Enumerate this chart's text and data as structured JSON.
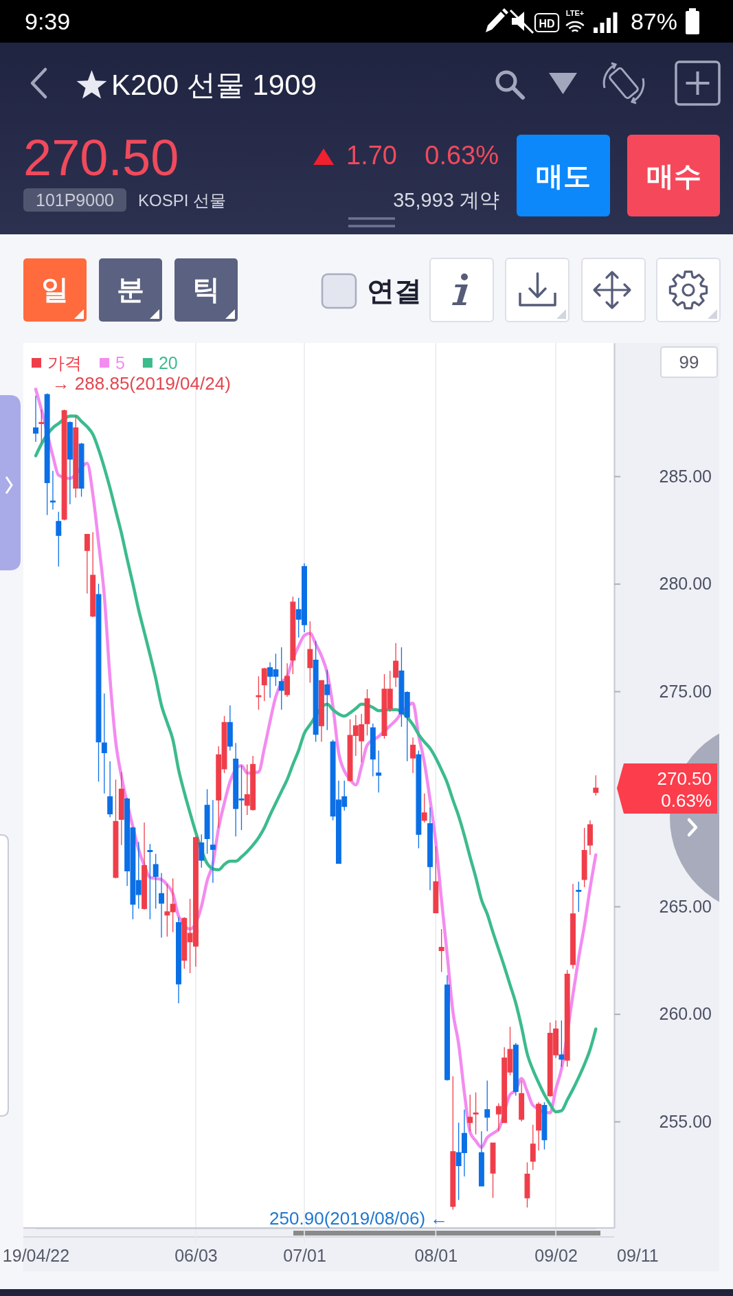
{
  "chart_data": {
    "type": "candlestick",
    "title": "K200 선물 1909",
    "categories": [
      "19/04/22",
      null,
      null,
      null,
      null,
      null,
      null,
      null,
      null,
      null,
      null,
      null,
      null,
      null,
      null,
      null,
      null,
      null,
      null,
      null,
      null,
      null,
      null,
      null,
      null,
      null,
      null,
      null,
      "06/03",
      null,
      null,
      null,
      null,
      null,
      null,
      null,
      null,
      null,
      null,
      null,
      null,
      null,
      null,
      null,
      null,
      null,
      null,
      "07/01",
      null,
      null,
      null,
      null,
      null,
      null,
      null,
      null,
      null,
      null,
      null,
      null,
      null,
      null,
      null,
      null,
      null,
      null,
      null,
      null,
      null,
      null,
      "08/01",
      null,
      null,
      null,
      null,
      null,
      null,
      null,
      null,
      null,
      null,
      null,
      null,
      null,
      null,
      null,
      null,
      null,
      null,
      null,
      null,
      "09/02",
      null,
      null,
      null,
      null,
      null,
      null,
      null
    ],
    "series": [
      {
        "name": "가격",
        "color": "#ef3e4a",
        "colors": [
          "#0b6fe6",
          "#ef3e4a",
          "#0b6fe6",
          "#0b6fe6",
          "#0b6fe6",
          "#ef3e4a",
          "#0b6fe6",
          "#ef3e4a",
          "#0b6fe6",
          "#ef3e4a",
          "#ef3e4a",
          "#0b6fe6",
          "#0b6fe6",
          "#0b6fe6",
          "#ef3e4a",
          "#ef3e4a",
          "#0b6fe6",
          "#0b6fe6",
          "#0b6fe6",
          "#ef3e4a",
          "#0b6fe6",
          "#0b6fe6",
          "#0b6fe6",
          "#ef3e4a",
          "#ef3e4a",
          "#0b6fe6",
          "#ef3e4a",
          "#ef3e4a",
          "#ef3e4a",
          "#0b6fe6",
          "#0b6fe6",
          "#0b6fe6",
          "#ef3e4a",
          "#ef3e4a",
          "#0b6fe6",
          "#0b6fe6",
          "#0b6fe6",
          "#ef3e4a",
          "#ef3e4a",
          "#ef3e4a",
          "#ef3e4a",
          "#0b6fe6",
          "#0b6fe6",
          "#0b6fe6",
          "#ef3e4a",
          "#ef3e4a",
          "#0b6fe6",
          "#0b6fe6",
          "#ef3e4a",
          "#0b6fe6",
          "#ef3e4a",
          "#0b6fe6",
          "#0b6fe6",
          "#0b6fe6",
          "#0b6fe6",
          "#ef3e4a",
          "#ef3e4a",
          "#ef3e4a",
          "#ef3e4a",
          "#0b6fe6",
          "#0b6fe6",
          "#ef3e4a",
          "#ef3e4a",
          "#ef3e4a",
          "#0b6fe6",
          "#0b6fe6",
          "#ef3e4a",
          "#0b6fe6",
          "#ef3e4a",
          "#0b6fe6",
          "#ef3e4a",
          "#ef3e4a",
          "#0b6fe6",
          "#ef3e4a",
          "#0b6fe6",
          "#0b6fe6",
          "#ef3e4a",
          "#ef3e4a",
          "#0b6fe6",
          "#0b6fe6",
          "#ef3e4a",
          "#ef3e4a",
          "#ef3e4a",
          "#ef3e4a",
          "#0b6fe6",
          "#ef3e4a",
          "#ef3e4a",
          "#ef3e4a",
          "#ef3e4a",
          "#0b6fe6",
          "#ef3e4a",
          "#ef3e4a",
          "#0b6fe6",
          "#ef3e4a",
          "#ef3e4a",
          "#0b6fe6",
          "#ef3e4a",
          "#ef3e4a",
          "#ef3e4a"
        ],
        "ohlc": [
          [
            287.25,
            288.75,
            286.6,
            287.0
          ],
          [
            287.45,
            288.1,
            286.55,
            287.5
          ],
          [
            288.8,
            288.85,
            283.2,
            284.7
          ],
          [
            283.85,
            285.25,
            283.45,
            283.8
          ],
          [
            282.9,
            283.35,
            280.8,
            282.25
          ],
          [
            283.0,
            288.1,
            282.95,
            288.05
          ],
          [
            287.5,
            287.55,
            283.7,
            285.8
          ],
          [
            284.45,
            287.8,
            284.0,
            287.25
          ],
          [
            286.5,
            286.55,
            284.05,
            284.45
          ],
          [
            281.55,
            282.3,
            279.55,
            282.3
          ],
          [
            278.5,
            282.4,
            278.45,
            280.4
          ],
          [
            279.5,
            280.0,
            270.8,
            272.65
          ],
          [
            272.6,
            274.9,
            270.25,
            272.15
          ],
          [
            270.1,
            271.75,
            269.15,
            269.3
          ],
          [
            266.35,
            270.9,
            266.3,
            268.95
          ],
          [
            269.05,
            271.25,
            267.85,
            270.45
          ],
          [
            270.0,
            270.05,
            265.95,
            266.65
          ],
          [
            268.65,
            268.7,
            264.4,
            265.1
          ],
          [
            266.2,
            268.0,
            264.9,
            265.55
          ],
          [
            264.9,
            268.9,
            264.85,
            266.9
          ],
          [
            267.6,
            267.9,
            264.4,
            267.55
          ],
          [
            266.95,
            267.45,
            264.9,
            266.4
          ],
          [
            265.6,
            266.55,
            263.55,
            265.15
          ],
          [
            264.6,
            266.05,
            263.6,
            264.75
          ],
          [
            264.75,
            266.3,
            263.8,
            265.1
          ],
          [
            264.25,
            264.5,
            260.5,
            261.4
          ],
          [
            262.5,
            264.5,
            262.1,
            264.45
          ],
          [
            263.35,
            265.35,
            261.9,
            263.75
          ],
          [
            263.15,
            268.25,
            262.2,
            268.2
          ],
          [
            267.95,
            268.35,
            266.8,
            267.15
          ],
          [
            269.7,
            270.45,
            267.45,
            268.15
          ],
          [
            267.85,
            269.95,
            266.1,
            267.65
          ],
          [
            269.95,
            272.45,
            268.65,
            272.05
          ],
          [
            271.4,
            273.85,
            271.2,
            273.55
          ],
          [
            273.55,
            274.35,
            272.25,
            272.45
          ],
          [
            271.85,
            272.6,
            268.25,
            269.55
          ],
          [
            270.0,
            271.55,
            268.55,
            269.95
          ],
          [
            269.7,
            271.6,
            269.25,
            270.2
          ],
          [
            269.5,
            272.0,
            269.45,
            271.6
          ],
          [
            274.75,
            275.7,
            274.15,
            274.8
          ],
          [
            275.3,
            276.1,
            274.55,
            276.05
          ],
          [
            276.1,
            276.35,
            274.7,
            275.7
          ],
          [
            276.0,
            276.75,
            275.25,
            275.7
          ],
          [
            275.45,
            277.05,
            274.15,
            275.05
          ],
          [
            274.85,
            276.3,
            274.75,
            275.7
          ],
          [
            276.45,
            279.4,
            275.8,
            279.15
          ],
          [
            278.8,
            279.35,
            277.5,
            278.35
          ],
          [
            280.8,
            280.95,
            277.75,
            278.1
          ],
          [
            276.1,
            278.25,
            275.4,
            276.95
          ],
          [
            276.45,
            277.35,
            272.65,
            273.0
          ],
          [
            273.4,
            275.5,
            272.65,
            275.5
          ],
          [
            275.3,
            276.0,
            273.2,
            274.85
          ],
          [
            272.65,
            272.75,
            269.0,
            269.2
          ],
          [
            269.95,
            270.85,
            267.0,
            267.0
          ],
          [
            270.1,
            270.85,
            269.45,
            269.65
          ],
          [
            270.85,
            273.7,
            270.8,
            272.95
          ],
          [
            272.95,
            273.9,
            272.0,
            273.4
          ],
          [
            272.7,
            273.95,
            271.7,
            273.45
          ],
          [
            273.5,
            275.1,
            272.95,
            274.65
          ],
          [
            273.3,
            273.5,
            271.05,
            271.85
          ],
          [
            271.2,
            272.25,
            270.3,
            271.1
          ],
          [
            272.95,
            275.8,
            272.8,
            275.1
          ],
          [
            274.2,
            275.95,
            274.05,
            275.1
          ],
          [
            275.65,
            277.25,
            275.2,
            276.4
          ],
          [
            275.95,
            277.05,
            273.35,
            273.95
          ],
          [
            274.95,
            275.0,
            271.75,
            273.8
          ],
          [
            271.9,
            272.85,
            271.2,
            272.5
          ],
          [
            272.05,
            272.25,
            267.7,
            268.35
          ],
          [
            269.0,
            270.25,
            268.9,
            269.35
          ],
          [
            268.85,
            269.6,
            265.75,
            266.85
          ],
          [
            264.7,
            267.8,
            264.7,
            266.15
          ],
          [
            262.95,
            263.95,
            261.95,
            263.1
          ],
          [
            261.35,
            261.8,
            256.9,
            256.95
          ],
          [
            251.05,
            257.1,
            250.9,
            253.6
          ],
          [
            253.55,
            254.95,
            251.35,
            252.95
          ],
          [
            254.45,
            255.55,
            252.45,
            253.55
          ],
          [
            254.95,
            256.25,
            254.55,
            255.2
          ],
          [
            255.35,
            256.35,
            254.4,
            255.4
          ],
          [
            253.55,
            254.55,
            252.0,
            252.0
          ],
          [
            255.55,
            256.9,
            254.55,
            255.2
          ],
          [
            252.6,
            254.0,
            251.45,
            254.0
          ],
          [
            255.35,
            255.85,
            254.55,
            255.7
          ],
          [
            254.95,
            258.45,
            254.95,
            257.95
          ],
          [
            257.3,
            259.4,
            257.15,
            258.35
          ],
          [
            258.55,
            258.65,
            256.2,
            256.4
          ],
          [
            255.1,
            256.9,
            255.0,
            256.3
          ],
          [
            251.45,
            253.1,
            251.0,
            252.55
          ],
          [
            253.15,
            254.85,
            252.75,
            253.95
          ],
          [
            254.6,
            255.9,
            253.65,
            255.8
          ],
          [
            255.75,
            255.9,
            253.7,
            254.15
          ],
          [
            256.2,
            259.6,
            256.15,
            259.1
          ],
          [
            258.1,
            259.7,
            257.95,
            259.3
          ],
          [
            258.1,
            259.7,
            257.55,
            257.9
          ],
          [
            257.85,
            262.05,
            257.55,
            261.85
          ],
          [
            262.3,
            266.05,
            262.1,
            264.65
          ],
          [
            265.75,
            266.15,
            264.75,
            265.7
          ],
          [
            266.25,
            268.65,
            265.9,
            267.6
          ],
          [
            267.85,
            269.0,
            267.4,
            268.8
          ],
          [
            270.3,
            271.1,
            270.15,
            270.5
          ]
        ]
      },
      {
        "name": "5",
        "type": "line",
        "color": "#f38bf0",
        "values": [
          289.05,
          288.1,
          null,
          285.95,
          285.05,
          null,
          284.9,
          null,
          null,
          285.6,
          284.15,
          281.9,
          279.45,
          275.6,
          272.65,
          271.05,
          null,
          268.7,
          267.65,
          266.9,
          266.35,
          266.3,
          266.25,
          266.0,
          265.6,
          264.55,
          null,
          263.95,
          null,
          265.0,
          266.2,
          267.0,
          268.65,
          269.8,
          270.8,
          null,
          271.55,
          271.2,
          null,
          271.25,
          272.35,
          273.6,
          274.75,
          275.4,
          275.7,
          276.5,
          277.1,
          277.6,
          277.7,
          277.2,
          276.65,
          275.85,
          274.3,
          272.15,
          271.3,
          270.9,
          270.65,
          271.5,
          272.5,
          null,
          272.9,
          null,
          273.4,
          273.65,
          274.0,
          null,
          274.45,
          272.95,
          271.7,
          269.95,
          268.0,
          265.3,
          262.75,
          260.1,
          258.6,
          256.35,
          254.5,
          254.1,
          253.8,
          254.25,
          254.45,
          254.65,
          null,
          256.25,
          256.45,
          257.0,
          256.4,
          255.75,
          null,
          null,
          255.4,
          256.5,
          257.45,
          null,
          260.9,
          262.6,
          264.1,
          265.85,
          267.4
        ]
      },
      {
        "name": "20",
        "type": "line",
        "color": "#3cbb8c",
        "values": [
          285.95,
          286.5,
          null,
          287.25,
          287.45,
          null,
          287.8,
          287.8,
          287.55,
          287.3,
          286.95,
          286.25,
          285.4,
          284.45,
          283.4,
          282.35,
          281.15,
          280.0,
          278.8,
          277.75,
          276.7,
          275.6,
          274.35,
          273.55,
          272.75,
          271.35,
          270.3,
          269.35,
          268.45,
          null,
          267.0,
          266.75,
          266.7,
          266.95,
          267.1,
          267.1,
          267.3,
          267.55,
          267.85,
          268.2,
          268.65,
          269.25,
          269.8,
          270.35,
          270.9,
          271.6,
          272.25,
          273.05,
          273.45,
          null,
          null,
          274.4,
          274.15,
          273.95,
          273.85,
          274.0,
          274.2,
          274.4,
          null,
          274.25,
          274.1,
          null,
          274.15,
          274.15,
          null,
          null,
          273.45,
          273.0,
          272.65,
          272.35,
          271.9,
          271.35,
          270.75,
          269.95,
          269.2,
          268.3,
          267.3,
          266.35,
          265.3,
          264.65,
          263.8,
          263.0,
          262.2,
          261.35,
          260.5,
          259.4,
          258.15,
          257.4,
          256.8,
          256.25,
          255.8,
          255.45,
          255.5,
          256.0,
          256.5,
          257.05,
          257.65,
          258.35,
          259.3
        ]
      }
    ],
    "ylim": [
      250.05,
      291.2
    ],
    "yticks": [
      {
        "value": 255,
        "label": "255.00"
      },
      {
        "value": 260,
        "label": "260.00"
      },
      {
        "value": 265,
        "label": "265.00"
      },
      {
        "value": 275,
        "label": "275.00"
      },
      {
        "value": 280,
        "label": "280.00"
      },
      {
        "value": 285,
        "label": "285.00"
      }
    ],
    "grid": "x",
    "legend": "top left",
    "annotations": [
      "9:39",
      "HD",
      "LTE+",
      "87%",
      "270.50",
      "1.70",
      "0.63%",
      "101P9000",
      "KOSPI 선물",
      "35,993 계약",
      "매도",
      "매수",
      "일",
      "분",
      "틱",
      "연결",
      "99",
      "→ 288.85(2019/04/24)",
      "250.90(2019/08/06) ←",
      "270.50\n0.63%",
      "09/11"
    ]
  }
}
